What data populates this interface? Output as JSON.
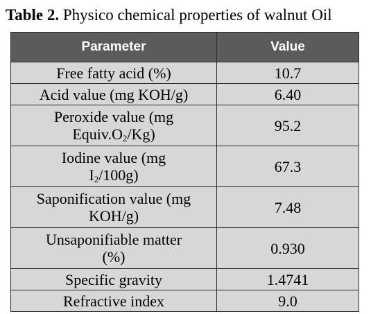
{
  "caption": {
    "label": "Table 2.",
    "text": "Physico chemical properties of walnut Oil"
  },
  "table": {
    "headers": [
      "Parameter",
      "Value"
    ],
    "rows": [
      {
        "parameter": "Free fatty acid (%)",
        "value": "10.7"
      },
      {
        "parameter": "Acid value (mg KOH/g)",
        "value": "6.40"
      },
      {
        "parameter_line1": "Peroxide value (mg",
        "parameter_line2_pre": "Equiv.O",
        "parameter_line2_sub": "2",
        "parameter_line2_post": "/Kg)",
        "value": "95.2"
      },
      {
        "parameter_line1": "Iodine value (mg",
        "parameter_line2_pre": "I",
        "parameter_line2_sub": "2",
        "parameter_line2_post": "/100g)",
        "value": "67.3"
      },
      {
        "parameter_line1": "Saponification value (mg",
        "parameter_line2": "KOH/g)",
        "value": "7.48"
      },
      {
        "parameter_line1": "Unsaponifiable matter",
        "parameter_line2": "(%)",
        "value": "0.930"
      },
      {
        "parameter": "Specific gravity",
        "value": "1.4741"
      },
      {
        "parameter": "Refractive index",
        "value": "9.0"
      }
    ]
  }
}
